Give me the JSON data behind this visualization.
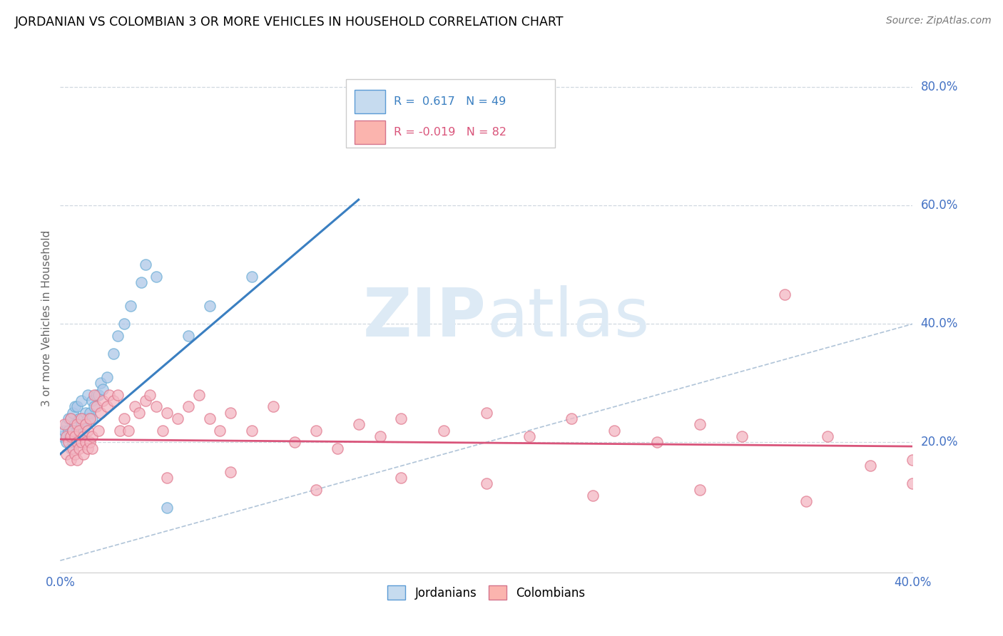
{
  "title": "JORDANIAN VS COLOMBIAN 3 OR MORE VEHICLES IN HOUSEHOLD CORRELATION CHART",
  "source": "Source: ZipAtlas.com",
  "ylabel": "3 or more Vehicles in Household",
  "yticks": [
    "20.0%",
    "40.0%",
    "60.0%",
    "80.0%"
  ],
  "ytick_vals": [
    0.2,
    0.4,
    0.6,
    0.8
  ],
  "xlim": [
    0.0,
    0.4
  ],
  "ylim": [
    -0.02,
    0.84
  ],
  "jordanian_R": 0.617,
  "jordanian_N": 49,
  "colombian_R": -0.019,
  "colombian_N": 82,
  "blue_scatter_color": "#aec7e8",
  "blue_edge_color": "#6baed6",
  "pink_scatter_color": "#f4b6c2",
  "pink_edge_color": "#e07a8f",
  "blue_line_color": "#3a7fc1",
  "pink_line_color": "#d9547a",
  "diag_color": "#b0c4d8",
  "legend_blue_fill": "#c6dbef",
  "legend_blue_edge": "#5b9bd5",
  "legend_pink_fill": "#fbb4ae",
  "legend_pink_edge": "#d4748c",
  "watermark_color": "#ddeaf5",
  "grid_color": "#d0d8e0",
  "jordanian_x": [
    0.001,
    0.002,
    0.003,
    0.003,
    0.004,
    0.004,
    0.005,
    0.005,
    0.005,
    0.006,
    0.006,
    0.006,
    0.007,
    0.007,
    0.007,
    0.008,
    0.008,
    0.008,
    0.009,
    0.009,
    0.01,
    0.01,
    0.01,
    0.011,
    0.011,
    0.012,
    0.012,
    0.013,
    0.013,
    0.014,
    0.015,
    0.015,
    0.016,
    0.017,
    0.018,
    0.019,
    0.02,
    0.022,
    0.025,
    0.027,
    0.03,
    0.033,
    0.038,
    0.04,
    0.045,
    0.05,
    0.06,
    0.07,
    0.09
  ],
  "jordanian_y": [
    0.21,
    0.22,
    0.2,
    0.23,
    0.22,
    0.24,
    0.19,
    0.21,
    0.24,
    0.2,
    0.22,
    0.25,
    0.21,
    0.23,
    0.26,
    0.2,
    0.22,
    0.26,
    0.22,
    0.24,
    0.21,
    0.23,
    0.27,
    0.22,
    0.24,
    0.23,
    0.25,
    0.24,
    0.28,
    0.25,
    0.24,
    0.27,
    0.26,
    0.28,
    0.28,
    0.3,
    0.29,
    0.31,
    0.35,
    0.38,
    0.4,
    0.43,
    0.47,
    0.5,
    0.48,
    0.09,
    0.38,
    0.43,
    0.48
  ],
  "colombian_x": [
    0.002,
    0.003,
    0.003,
    0.004,
    0.005,
    0.005,
    0.005,
    0.006,
    0.006,
    0.007,
    0.007,
    0.008,
    0.008,
    0.008,
    0.009,
    0.009,
    0.01,
    0.01,
    0.011,
    0.011,
    0.012,
    0.012,
    0.013,
    0.013,
    0.014,
    0.014,
    0.015,
    0.015,
    0.016,
    0.017,
    0.018,
    0.019,
    0.02,
    0.022,
    0.023,
    0.025,
    0.027,
    0.028,
    0.03,
    0.032,
    0.035,
    0.037,
    0.04,
    0.042,
    0.045,
    0.048,
    0.05,
    0.055,
    0.06,
    0.065,
    0.07,
    0.075,
    0.08,
    0.09,
    0.1,
    0.11,
    0.12,
    0.13,
    0.14,
    0.15,
    0.16,
    0.18,
    0.2,
    0.22,
    0.24,
    0.26,
    0.28,
    0.3,
    0.32,
    0.34,
    0.36,
    0.38,
    0.4,
    0.05,
    0.08,
    0.12,
    0.16,
    0.2,
    0.25,
    0.3,
    0.35,
    0.4
  ],
  "colombian_y": [
    0.23,
    0.18,
    0.21,
    0.2,
    0.17,
    0.21,
    0.24,
    0.19,
    0.22,
    0.18,
    0.21,
    0.2,
    0.17,
    0.23,
    0.19,
    0.22,
    0.2,
    0.24,
    0.18,
    0.21,
    0.2,
    0.23,
    0.19,
    0.22,
    0.2,
    0.24,
    0.19,
    0.21,
    0.28,
    0.26,
    0.22,
    0.25,
    0.27,
    0.26,
    0.28,
    0.27,
    0.28,
    0.22,
    0.24,
    0.22,
    0.26,
    0.25,
    0.27,
    0.28,
    0.26,
    0.22,
    0.25,
    0.24,
    0.26,
    0.28,
    0.24,
    0.22,
    0.25,
    0.22,
    0.26,
    0.2,
    0.22,
    0.19,
    0.23,
    0.21,
    0.24,
    0.22,
    0.25,
    0.21,
    0.24,
    0.22,
    0.2,
    0.23,
    0.21,
    0.45,
    0.21,
    0.16,
    0.17,
    0.14,
    0.15,
    0.12,
    0.14,
    0.13,
    0.11,
    0.12,
    0.1,
    0.13
  ]
}
